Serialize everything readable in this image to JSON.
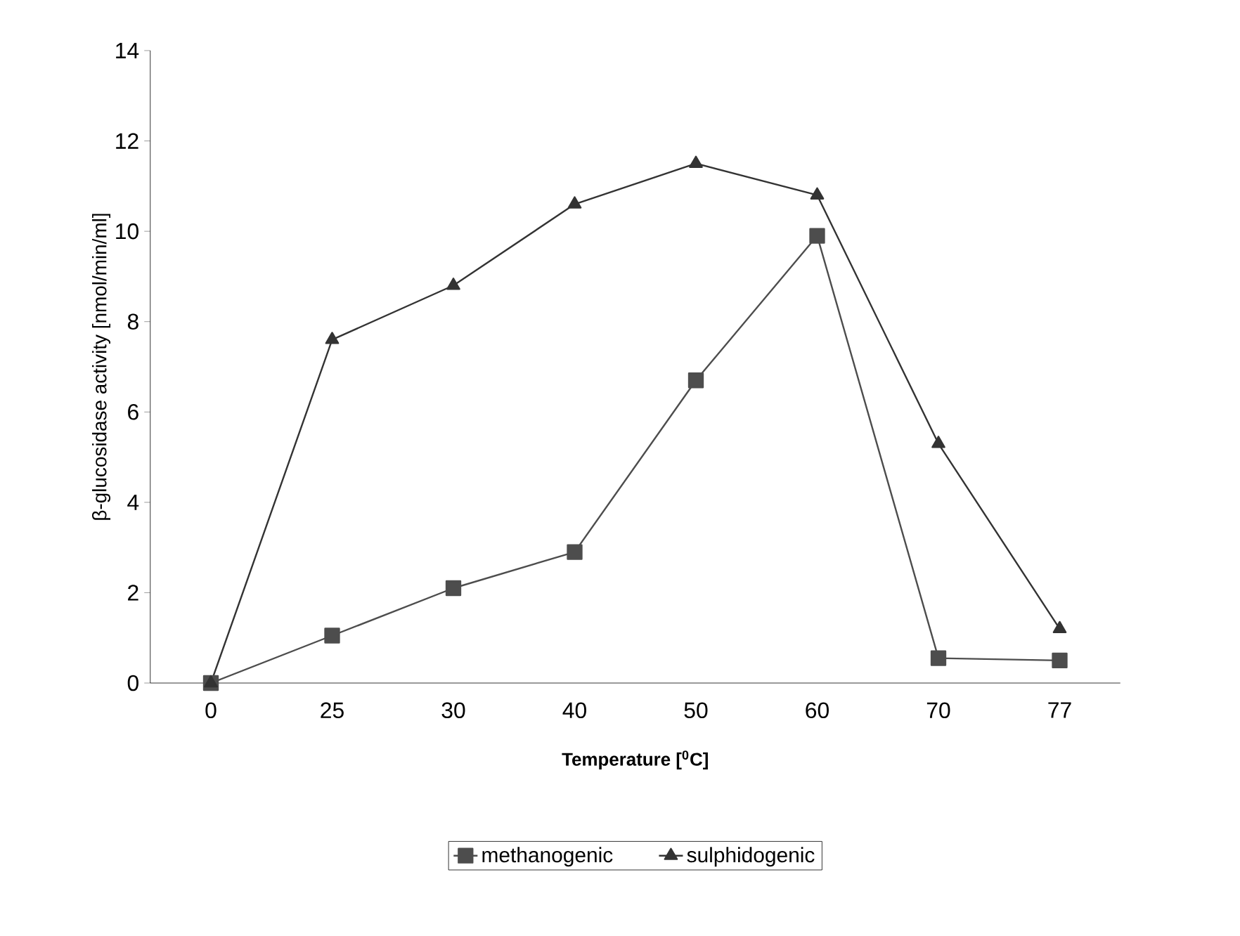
{
  "chart_data": {
    "type": "line",
    "xlabel": "Temperature [$^{0}$C]",
    "ylabel": "β-glucosidase activity [nmol/min/ml]",
    "categories": [
      "0",
      "25",
      "30",
      "40",
      "50",
      "60",
      "70",
      "77"
    ],
    "ylim": [
      0,
      14
    ],
    "yticks": [
      0,
      2,
      4,
      6,
      8,
      10,
      12,
      14
    ],
    "grid": false,
    "legend": "bottom",
    "series": [
      {
        "name": "methanogenic",
        "color": "#4d4d4d",
        "marker": "square",
        "values": [
          0,
          1.05,
          2.1,
          2.9,
          6.7,
          9.9,
          0.55,
          0.5
        ]
      },
      {
        "name": "sulphidogenic",
        "color": "#333333",
        "marker": "triangle",
        "values": [
          0,
          7.6,
          8.8,
          10.6,
          11.5,
          10.8,
          5.3,
          1.2
        ]
      }
    ]
  }
}
